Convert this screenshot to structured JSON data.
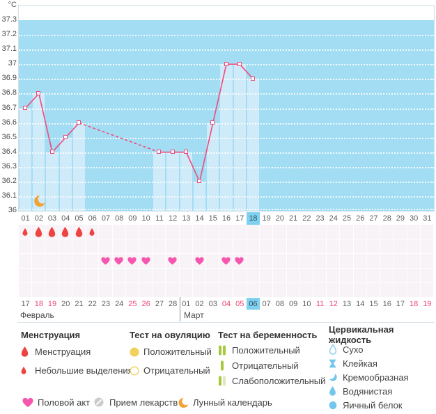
{
  "colors": {
    "chart_bg": "#a3ddf3",
    "bar": "#cfeaf8",
    "line": "#ef4a7d",
    "marker_fill": "#ffffff",
    "grid": "#ffffff",
    "highlight": "#7ed2f0",
    "red_date": "#ef4370",
    "menstruation_red": "#ee4343",
    "heart_pink": "#f457ad",
    "moon_orange": "#f2a233",
    "ovulation_yellow": "#f2d05c",
    "pregnancy_green": "#a5c93d",
    "pregnancy_pale": "#dce8c0",
    "cervical_blue": "#74c6ec",
    "pill_gray": "#cbcbcb"
  },
  "chart_data": {
    "type": "line",
    "unit_label": "°C",
    "ylim": [
      36.0,
      37.4
    ],
    "grid": "dotted-white",
    "current_day": 18,
    "moon_day": 2,
    "y_ticks": [
      {
        "v": 37.3,
        "label": "37.3"
      },
      {
        "v": 37.2,
        "label": "37.2"
      },
      {
        "v": 37.1,
        "label": "37.1"
      },
      {
        "v": 37.0,
        "label": "37"
      },
      {
        "v": 36.9,
        "label": "36.9"
      },
      {
        "v": 36.8,
        "label": "36.8"
      },
      {
        "v": 36.7,
        "label": "36.7"
      },
      {
        "v": 36.6,
        "label": "36.6"
      },
      {
        "v": 36.5,
        "label": "36.5"
      },
      {
        "v": 36.4,
        "label": "36.4"
      },
      {
        "v": 36.3,
        "label": "36.3"
      },
      {
        "v": 36.2,
        "label": "36.2"
      },
      {
        "v": 36.1,
        "label": "36.1"
      },
      {
        "v": 36.0,
        "label": "36"
      }
    ],
    "series": [
      {
        "name": "basal-temperature",
        "points": [
          {
            "day": 1,
            "temp": 36.7
          },
          {
            "day": 2,
            "temp": 36.8
          },
          {
            "day": 3,
            "temp": 36.4
          },
          {
            "day": 4,
            "temp": 36.5
          },
          {
            "day": 5,
            "temp": 36.6
          },
          {
            "day": 11,
            "temp": 36.4
          },
          {
            "day": 12,
            "temp": 36.4
          },
          {
            "day": 13,
            "temp": 36.4
          },
          {
            "day": 14,
            "temp": 36.2
          },
          {
            "day": 15,
            "temp": 36.6
          },
          {
            "day": 16,
            "temp": 37.0
          },
          {
            "day": 17,
            "temp": 37.0
          },
          {
            "day": 18,
            "temp": 36.9
          }
        ]
      }
    ]
  },
  "days": [
    "01",
    "02",
    "03",
    "04",
    "05",
    "06",
    "07",
    "08",
    "09",
    "10",
    "11",
    "12",
    "13",
    "14",
    "15",
    "16",
    "17",
    "18",
    "19",
    "20",
    "21",
    "22",
    "23",
    "24",
    "25",
    "26",
    "27",
    "28",
    "29",
    "30",
    "31"
  ],
  "symbol_rows": [
    {
      "name": "menstruation",
      "icons": [
        {
          "day": 1,
          "icon": "drop-small"
        },
        {
          "day": 2,
          "icon": "drop-large"
        },
        {
          "day": 3,
          "icon": "drop-large"
        },
        {
          "day": 4,
          "icon": "drop-large"
        },
        {
          "day": 5,
          "icon": "drop-large"
        },
        {
          "day": 6,
          "icon": "drop-small"
        }
      ]
    },
    {
      "name": "ovulation-test",
      "icons": []
    },
    {
      "name": "intercourse",
      "icons": [
        {
          "day": 7,
          "icon": "heart"
        },
        {
          "day": 8,
          "icon": "heart"
        },
        {
          "day": 9,
          "icon": "heart"
        },
        {
          "day": 10,
          "icon": "heart"
        },
        {
          "day": 12,
          "icon": "heart"
        },
        {
          "day": 14,
          "icon": "heart"
        },
        {
          "day": 16,
          "icon": "heart"
        },
        {
          "day": 17,
          "icon": "heart"
        }
      ]
    },
    {
      "name": "medication",
      "icons": []
    },
    {
      "name": "cervical-fluid",
      "icons": []
    }
  ],
  "calendar": {
    "months": [
      {
        "name": "Февраль",
        "span": 12
      },
      {
        "name": "Март",
        "span": 19
      }
    ],
    "dates": [
      {
        "t": "17"
      },
      {
        "t": "18",
        "red": true
      },
      {
        "t": "19",
        "red": true
      },
      {
        "t": "20"
      },
      {
        "t": "21"
      },
      {
        "t": "22"
      },
      {
        "t": "23"
      },
      {
        "t": "24"
      },
      {
        "t": "25",
        "red": true
      },
      {
        "t": "26",
        "red": true
      },
      {
        "t": "27"
      },
      {
        "t": "28"
      },
      {
        "t": "01"
      },
      {
        "t": "02"
      },
      {
        "t": "03"
      },
      {
        "t": "04",
        "red": true
      },
      {
        "t": "05",
        "red": true
      },
      {
        "t": "06",
        "cur": true
      },
      {
        "t": "07"
      },
      {
        "t": "08"
      },
      {
        "t": "09"
      },
      {
        "t": "10"
      },
      {
        "t": "11",
        "red": true
      },
      {
        "t": "12",
        "red": true
      },
      {
        "t": "13"
      },
      {
        "t": "14"
      },
      {
        "t": "15"
      },
      {
        "t": "16"
      },
      {
        "t": "17"
      },
      {
        "t": "18",
        "red": true
      },
      {
        "t": "19",
        "red": true
      }
    ]
  },
  "legend": {
    "sections": [
      {
        "title": "Менструация",
        "items": [
          {
            "icon": "drop-large",
            "label": "Менструация"
          },
          {
            "icon": "drop-small",
            "label": "Небольшие выделения"
          }
        ]
      },
      {
        "title": "Тест на овуляцию",
        "items": [
          {
            "icon": "circle-filled-yellow",
            "label": "Положительный"
          },
          {
            "icon": "circle-outline-yellow",
            "label": "Отрицательный"
          }
        ]
      },
      {
        "title": "Тест на беременность",
        "items": [
          {
            "icon": "bars-two-green",
            "label": "Положительный"
          },
          {
            "icon": "bar-one-green",
            "label": "Отрицательный"
          },
          {
            "icon": "bars-green-pale",
            "label": "Слабоположительный"
          }
        ]
      },
      {
        "title": "Цервикальная жидкость",
        "items": [
          {
            "icon": "drop-outline-blue",
            "label": "Сухо"
          },
          {
            "icon": "sticky-blue",
            "label": "Клейкая"
          },
          {
            "icon": "crescent-blue",
            "label": "Кремообразная"
          },
          {
            "icon": "drop-blue",
            "label": "Водянистая"
          },
          {
            "icon": "circle-blue",
            "label": "Яичный белок"
          }
        ]
      }
    ],
    "bottom_items": [
      {
        "icon": "heart",
        "label": "Половой акт"
      },
      {
        "icon": "pill",
        "label": "Прием лекарств"
      },
      {
        "icon": "moon",
        "label": "Лунный календарь"
      }
    ]
  }
}
